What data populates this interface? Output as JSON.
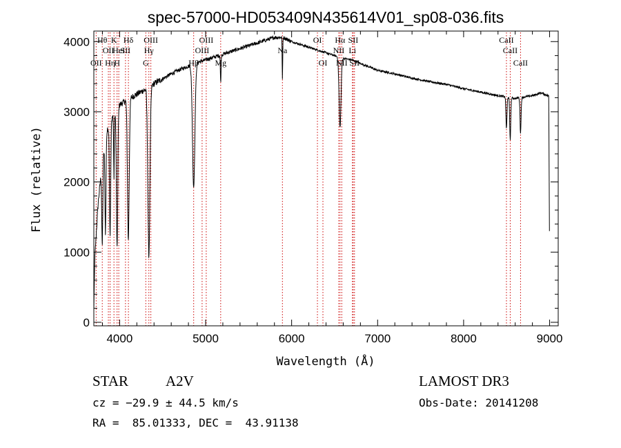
{
  "chart_data": {
    "type": "line",
    "title": "spec-57000-HD053409N435614V01_sp08-036.fits",
    "xlabel": "Wavelength (Å)",
    "ylabel": "Flux (relative)",
    "xlim": [
      3700,
      9100
    ],
    "ylim": [
      -50,
      4150
    ],
    "x_ticks": [
      4000,
      5000,
      6000,
      7000,
      8000,
      9000
    ],
    "y_ticks": [
      0,
      1000,
      2000,
      3000,
      4000
    ],
    "continuum": [
      [
        3700,
        700
      ],
      [
        3750,
        1700
      ],
      [
        3800,
        2300
      ],
      [
        3850,
        2700
      ],
      [
        3900,
        2900
      ],
      [
        3950,
        3000
      ],
      [
        4000,
        3100
      ],
      [
        4100,
        3180
      ],
      [
        4200,
        3250
      ],
      [
        4300,
        3320
      ],
      [
        4400,
        3400
      ],
      [
        4500,
        3470
      ],
      [
        4600,
        3540
      ],
      [
        4700,
        3600
      ],
      [
        4800,
        3650
      ],
      [
        4900,
        3700
      ],
      [
        5000,
        3740
      ],
      [
        5100,
        3780
      ],
      [
        5200,
        3820
      ],
      [
        5300,
        3860
      ],
      [
        5400,
        3900
      ],
      [
        5500,
        3940
      ],
      [
        5600,
        3980
      ],
      [
        5700,
        4020
      ],
      [
        5800,
        4060
      ],
      [
        5900,
        4060
      ],
      [
        6000,
        4000
      ],
      [
        6100,
        3960
      ],
      [
        6200,
        3920
      ],
      [
        6300,
        3880
      ],
      [
        6400,
        3840
      ],
      [
        6500,
        3800
      ],
      [
        6600,
        3760
      ],
      [
        6700,
        3740
      ],
      [
        6800,
        3690
      ],
      [
        6900,
        3640
      ],
      [
        7000,
        3590
      ],
      [
        7200,
        3540
      ],
      [
        7400,
        3480
      ],
      [
        7600,
        3430
      ],
      [
        7800,
        3390
      ],
      [
        8000,
        3330
      ],
      [
        8200,
        3280
      ],
      [
        8400,
        3230
      ],
      [
        8600,
        3190
      ],
      [
        8800,
        3230
      ],
      [
        8900,
        3270
      ],
      [
        9000,
        3220
      ]
    ],
    "absorption": [
      {
        "center": 3798,
        "depth": 1200,
        "width": 6
      },
      {
        "center": 3835,
        "depth": 1300,
        "width": 6
      },
      {
        "center": 3889,
        "depth": 1600,
        "width": 7
      },
      {
        "center": 3934,
        "depth": 900,
        "width": 4
      },
      {
        "center": 3970,
        "depth": 2000,
        "width": 8
      },
      {
        "center": 4101,
        "depth": 2000,
        "width": 10
      },
      {
        "center": 4340,
        "depth": 2400,
        "width": 12
      },
      {
        "center": 4861,
        "depth": 1750,
        "width": 14
      },
      {
        "center": 5175,
        "depth": 400,
        "width": 4
      },
      {
        "center": 5893,
        "depth": 620,
        "width": 3
      },
      {
        "center": 6563,
        "depth": 1000,
        "width": 11
      },
      {
        "center": 8498,
        "depth": 450,
        "width": 6
      },
      {
        "center": 8542,
        "depth": 600,
        "width": 6
      },
      {
        "center": 8662,
        "depth": 500,
        "width": 6
      }
    ],
    "lines": [
      {
        "wave": 3727,
        "label": "OII",
        "row": 2
      },
      {
        "wave": 3798,
        "label": "Hθ",
        "row": 0
      },
      {
        "wave": 3869,
        "label": "OII",
        "row": 1
      },
      {
        "wave": 3889,
        "label": "Hη",
        "row": 2
      },
      {
        "wave": 3934,
        "label": "K",
        "row": 0
      },
      {
        "wave": 3970,
        "label": "H",
        "row": 2
      },
      {
        "wave": 3990,
        "label": "HeI",
        "row": 1
      },
      {
        "wave": 4068,
        "label": "SII",
        "row": 1
      },
      {
        "wave": 4102,
        "label": "Hδ",
        "row": 0
      },
      {
        "wave": 4304,
        "label": "G",
        "row": 2
      },
      {
        "wave": 4340,
        "label": "Hγ",
        "row": 1
      },
      {
        "wave": 4363,
        "label": "OIII",
        "row": 0
      },
      {
        "wave": 4861,
        "label": "Hβ",
        "row": 2
      },
      {
        "wave": 4959,
        "label": "OIII",
        "row": 1
      },
      {
        "wave": 5007,
        "label": "OIII",
        "row": 0
      },
      {
        "wave": 5175,
        "label": "Mg",
        "row": 2
      },
      {
        "wave": 5893,
        "label": "Na",
        "row": 1
      },
      {
        "wave": 6300,
        "label": "OI",
        "row": 0
      },
      {
        "wave": 6364,
        "label": "OI",
        "row": 2
      },
      {
        "wave": 6548,
        "label": "NII",
        "row": 1
      },
      {
        "wave": 6563,
        "label": "Hα",
        "row": 0
      },
      {
        "wave": 6583,
        "label": "NII",
        "row": 2
      },
      {
        "wave": 6707,
        "label": "Li",
        "row": 1
      },
      {
        "wave": 6716,
        "label": "SII",
        "row": 0
      },
      {
        "wave": 6731,
        "label": "SII",
        "row": 2
      },
      {
        "wave": 8498,
        "label": "CaII",
        "row": 0
      },
      {
        "wave": 8542,
        "label": "CaII",
        "row": 1
      },
      {
        "wave": 8662,
        "label": "CaII",
        "row": 2
      }
    ],
    "colors": {
      "spectrum": "#000000",
      "marker": "#cc0000",
      "axes": "#000000"
    }
  },
  "info": {
    "class_label": "STAR",
    "subclass": "A2V",
    "survey": "LAMOST DR3",
    "cz": "cz = −29.9 ± 44.5 km/s",
    "obs_date": "Obs-Date: 20141208",
    "coords": "RA =  85.01333, DEC =  43.91138"
  }
}
